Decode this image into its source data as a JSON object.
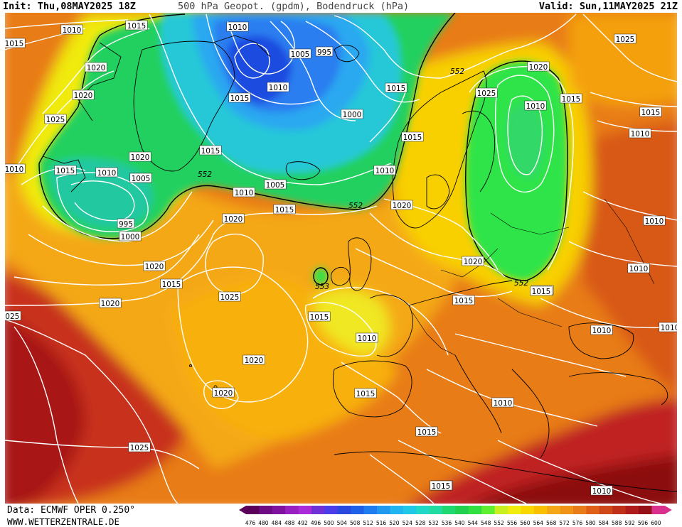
{
  "header": {
    "init": "Init: Thu,08MAY2025 18Z",
    "title": "500 hPa Geopot. (gpdm), Bodendruck (hPa)",
    "valid": "Valid: Sun,11MAY2025 21Z"
  },
  "footer": {
    "source": "Data: ECMWF OPER 0.250°",
    "website": "WWW.WETTERZENTRALE.DE"
  },
  "colors": {
    "purple": "#6a0a78",
    "deep_blue": "#1e3cd8",
    "blue": "#2a8ff0",
    "cyan": "#28c8e8",
    "green": "#22d060",
    "bright_green": "#2ee44a",
    "yellow": "#f0ec10",
    "gold": "#f8c400",
    "orange": "#f4a010",
    "dark_orange": "#e87a10",
    "red_orange": "#d84818",
    "red": "#c02020",
    "dark_red": "#8c1010",
    "isobar": "#ffffff",
    "coast": "#000000"
  },
  "scale": {
    "values": [
      "476",
      "480",
      "484",
      "488",
      "492",
      "496",
      "500",
      "504",
      "508",
      "512",
      "516",
      "520",
      "524",
      "528",
      "532",
      "536",
      "540",
      "544",
      "548",
      "552",
      "556",
      "560",
      "564",
      "568",
      "572",
      "576",
      "580",
      "584",
      "588",
      "592",
      "596",
      "600"
    ],
    "colors": [
      "#5a005a",
      "#6e0a82",
      "#8012a0",
      "#9820c0",
      "#a82ad8",
      "#7030d8",
      "#4a3ce8",
      "#2848e0",
      "#1e60e8",
      "#1e7cf0",
      "#2098f0",
      "#20b4f0",
      "#20c8e8",
      "#20d8c8",
      "#20dca0",
      "#20d870",
      "#22d050",
      "#30e040",
      "#5ef030",
      "#c8f020",
      "#f0ec10",
      "#f8d800",
      "#f8c000",
      "#f4a818",
      "#f09418",
      "#e87c18",
      "#e06018",
      "#d04818",
      "#c03018",
      "#b01c1c",
      "#961018",
      "#d8308c"
    ]
  },
  "isobar_labels": [
    {
      "text": "1010"
    },
    {
      "text": "1015"
    },
    {
      "text": "1015"
    },
    {
      "text": "1020"
    },
    {
      "text": "1020"
    },
    {
      "text": "1025"
    },
    {
      "text": "1010"
    },
    {
      "text": "1005"
    },
    {
      "text": "995"
    },
    {
      "text": "1015"
    },
    {
      "text": "1010"
    },
    {
      "text": "1000"
    },
    {
      "text": "1005"
    },
    {
      "text": "1015"
    },
    {
      "text": "1020"
    },
    {
      "text": "1015"
    },
    {
      "text": "1010"
    },
    {
      "text": "1005"
    },
    {
      "text": "995"
    },
    {
      "text": "1000"
    },
    {
      "text": "1010"
    },
    {
      "text": "1005"
    },
    {
      "text": "1015"
    },
    {
      "text": "1010"
    },
    {
      "text": "1020"
    },
    {
      "text": "1015"
    },
    {
      "text": "1020"
    },
    {
      "text": "1020"
    },
    {
      "text": "1025"
    },
    {
      "text": "1010"
    },
    {
      "text": "1015"
    },
    {
      "text": "1020"
    },
    {
      "text": "1025"
    },
    {
      "text": "1015"
    },
    {
      "text": "1010"
    },
    {
      "text": "1020"
    },
    {
      "text": "1020"
    },
    {
      "text": "1025"
    },
    {
      "text": "1025"
    },
    {
      "text": "1015"
    },
    {
      "text": "1015"
    },
    {
      "text": "1020"
    },
    {
      "text": "1020"
    },
    {
      "text": "1015"
    },
    {
      "text": "1010"
    },
    {
      "text": "1015"
    },
    {
      "text": "1010"
    },
    {
      "text": "1015"
    },
    {
      "text": "1015"
    },
    {
      "text": "1010"
    },
    {
      "text": "1010"
    },
    {
      "text": "1010"
    },
    {
      "text": "1010"
    },
    {
      "text": "1010"
    },
    {
      "text": "1010"
    },
    {
      "text": "1015"
    },
    {
      "text": "1015"
    },
    {
      "text": "1015"
    },
    {
      "text": "1015"
    },
    {
      "text": "1025"
    }
  ],
  "geopotential_labels": [
    {
      "text": "552"
    },
    {
      "text": "552"
    },
    {
      "text": "552"
    },
    {
      "text": "552"
    },
    {
      "text": "553"
    }
  ]
}
